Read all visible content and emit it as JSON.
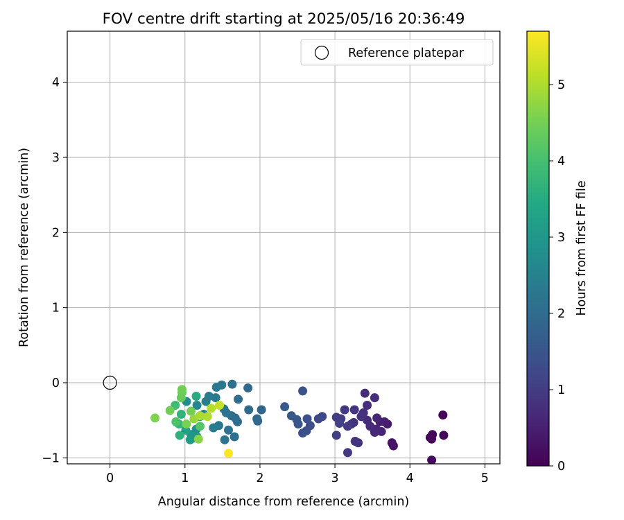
{
  "chart_data": {
    "type": "scatter",
    "title": "FOV centre drift starting at 2025/05/16 20:36:49",
    "xlabel": "Angular distance from reference (arcmin)",
    "ylabel": "Rotation from reference (arcmin)",
    "xlim": [
      -0.57,
      5.2
    ],
    "ylim": [
      -1.08,
      4.68
    ],
    "xticks": [
      0,
      1,
      2,
      3,
      4,
      5
    ],
    "yticks": [
      -1,
      0,
      1,
      2,
      3,
      4
    ],
    "grid": true,
    "legend": {
      "position": "top-right",
      "entries": [
        "Reference platepar"
      ]
    },
    "reference_point": {
      "x": 0,
      "y": 0
    },
    "colorbar": {
      "label": "Hours from first FF file",
      "colormap": "viridis",
      "range": [
        0,
        5.7
      ],
      "ticks": [
        0,
        1,
        2,
        3,
        4,
        5
      ]
    },
    "points": [
      {
        "x": 4.44,
        "y": -0.43,
        "t": 0.05
      },
      {
        "x": 4.45,
        "y": -0.7,
        "t": 0.05
      },
      {
        "x": 4.3,
        "y": -0.69,
        "t": 0.08
      },
      {
        "x": 4.27,
        "y": -0.73,
        "t": 0.1
      },
      {
        "x": 4.29,
        "y": -0.75,
        "t": 0.12
      },
      {
        "x": 4.29,
        "y": -1.03,
        "t": 0.15
      },
      {
        "x": 3.78,
        "y": -0.84,
        "t": 0.3
      },
      {
        "x": 3.76,
        "y": -0.8,
        "t": 0.32
      },
      {
        "x": 3.7,
        "y": -0.55,
        "t": 0.4
      },
      {
        "x": 3.66,
        "y": -0.52,
        "t": 0.45
      },
      {
        "x": 3.6,
        "y": -0.52,
        "t": 0.5
      },
      {
        "x": 3.62,
        "y": -0.65,
        "t": 0.55
      },
      {
        "x": 3.55,
        "y": -0.62,
        "t": 0.58
      },
      {
        "x": 3.56,
        "y": -0.47,
        "t": 0.6
      },
      {
        "x": 3.53,
        "y": -0.66,
        "t": 0.65
      },
      {
        "x": 3.47,
        "y": -0.58,
        "t": 0.68
      },
      {
        "x": 3.43,
        "y": -0.5,
        "t": 0.7
      },
      {
        "x": 3.43,
        "y": -0.3,
        "t": 0.72
      },
      {
        "x": 3.4,
        "y": -0.14,
        "t": 0.73
      },
      {
        "x": 3.53,
        "y": -0.2,
        "t": 0.75
      },
      {
        "x": 3.38,
        "y": -0.4,
        "t": 0.78
      },
      {
        "x": 3.35,
        "y": -0.45,
        "t": 0.8
      },
      {
        "x": 3.31,
        "y": -0.8,
        "t": 0.82
      },
      {
        "x": 3.27,
        "y": -0.78,
        "t": 0.84
      },
      {
        "x": 3.25,
        "y": -0.53,
        "t": 0.86
      },
      {
        "x": 3.22,
        "y": -0.55,
        "t": 0.88
      },
      {
        "x": 3.26,
        "y": -0.36,
        "t": 0.9
      },
      {
        "x": 3.17,
        "y": -0.93,
        "t": 0.92
      },
      {
        "x": 3.13,
        "y": -0.36,
        "t": 0.94
      },
      {
        "x": 3.17,
        "y": -0.58,
        "t": 0.96
      },
      {
        "x": 3.08,
        "y": -0.48,
        "t": 1.0
      },
      {
        "x": 3.02,
        "y": -0.46,
        "t": 1.02
      },
      {
        "x": 3.02,
        "y": -0.7,
        "t": 1.05
      },
      {
        "x": 3.06,
        "y": -0.54,
        "t": 1.08
      },
      {
        "x": 2.83,
        "y": -0.45,
        "t": 1.2
      },
      {
        "x": 2.78,
        "y": -0.48,
        "t": 1.25
      },
      {
        "x": 2.67,
        "y": -0.57,
        "t": 1.3
      },
      {
        "x": 2.62,
        "y": -0.64,
        "t": 1.35
      },
      {
        "x": 2.57,
        "y": -0.67,
        "t": 1.38
      },
      {
        "x": 2.63,
        "y": -0.48,
        "t": 1.42
      },
      {
        "x": 2.57,
        "y": -0.11,
        "t": 1.45
      },
      {
        "x": 2.51,
        "y": -0.55,
        "t": 1.5
      },
      {
        "x": 2.49,
        "y": -0.49,
        "t": 1.52
      },
      {
        "x": 2.42,
        "y": -0.44,
        "t": 1.55
      },
      {
        "x": 2.33,
        "y": -0.32,
        "t": 1.6
      },
      {
        "x": 2.02,
        "y": -0.36,
        "t": 1.85
      },
      {
        "x": 1.96,
        "y": -0.48,
        "t": 1.9
      },
      {
        "x": 1.97,
        "y": -0.51,
        "t": 1.92
      },
      {
        "x": 1.84,
        "y": -0.07,
        "t": 1.95
      },
      {
        "x": 1.85,
        "y": -0.36,
        "t": 1.98
      },
      {
        "x": 1.71,
        "y": -0.22,
        "t": 2.0
      },
      {
        "x": 1.7,
        "y": -0.52,
        "t": 2.02
      },
      {
        "x": 1.67,
        "y": -0.47,
        "t": 2.05
      },
      {
        "x": 1.62,
        "y": -0.44,
        "t": 2.08
      },
      {
        "x": 1.66,
        "y": -0.72,
        "t": 2.1
      },
      {
        "x": 1.63,
        "y": -0.02,
        "t": 2.12
      },
      {
        "x": 1.58,
        "y": -0.63,
        "t": 2.15
      },
      {
        "x": 1.55,
        "y": -0.4,
        "t": 2.18
      },
      {
        "x": 1.52,
        "y": -0.35,
        "t": 2.2
      },
      {
        "x": 1.53,
        "y": -0.76,
        "t": 2.22
      },
      {
        "x": 1.49,
        "y": -0.03,
        "t": 2.25
      },
      {
        "x": 1.45,
        "y": -0.57,
        "t": 2.28
      },
      {
        "x": 1.42,
        "y": -0.06,
        "t": 2.3
      },
      {
        "x": 1.41,
        "y": -0.2,
        "t": 2.33
      },
      {
        "x": 1.38,
        "y": -0.6,
        "t": 2.36
      },
      {
        "x": 1.32,
        "y": -0.18,
        "t": 2.4
      },
      {
        "x": 1.28,
        "y": -0.25,
        "t": 2.45
      },
      {
        "x": 1.25,
        "y": -0.42,
        "t": 2.5
      },
      {
        "x": 1.16,
        "y": -0.3,
        "t": 2.6
      },
      {
        "x": 1.02,
        "y": -0.25,
        "t": 2.75
      },
      {
        "x": 1.15,
        "y": -0.62,
        "t": 2.8
      },
      {
        "x": 1.16,
        "y": -0.72,
        "t": 2.85
      },
      {
        "x": 1.1,
        "y": -0.74,
        "t": 2.9
      },
      {
        "x": 1.08,
        "y": -0.69,
        "t": 3.0
      },
      {
        "x": 1.07,
        "y": -0.76,
        "t": 3.05
      },
      {
        "x": 1.01,
        "y": -0.63,
        "t": 3.2
      },
      {
        "x": 1.15,
        "y": -0.18,
        "t": 3.5
      },
      {
        "x": 1.2,
        "y": -0.45,
        "t": 3.55
      },
      {
        "x": 0.93,
        "y": -0.7,
        "t": 3.6
      },
      {
        "x": 0.95,
        "y": -0.42,
        "t": 3.7
      },
      {
        "x": 0.92,
        "y": -0.55,
        "t": 3.75
      },
      {
        "x": 0.87,
        "y": -0.3,
        "t": 3.9
      },
      {
        "x": 0.88,
        "y": -0.52,
        "t": 4.1
      },
      {
        "x": 1.2,
        "y": -0.58,
        "t": 4.15
      },
      {
        "x": 0.95,
        "y": -0.2,
        "t": 4.35
      },
      {
        "x": 0.96,
        "y": -0.13,
        "t": 4.4
      },
      {
        "x": 0.96,
        "y": -0.09,
        "t": 4.45
      },
      {
        "x": 0.8,
        "y": -0.37,
        "t": 4.45
      },
      {
        "x": 1.08,
        "y": -0.38,
        "t": 4.5
      },
      {
        "x": 1.02,
        "y": -0.55,
        "t": 4.55
      },
      {
        "x": 1.18,
        "y": -0.75,
        "t": 4.65
      },
      {
        "x": 0.6,
        "y": -0.47,
        "t": 4.6
      },
      {
        "x": 1.12,
        "y": -0.48,
        "t": 4.8
      },
      {
        "x": 1.2,
        "y": -0.44,
        "t": 4.95
      },
      {
        "x": 1.3,
        "y": -0.45,
        "t": 5.0
      },
      {
        "x": 1.35,
        "y": -0.34,
        "t": 5.05
      },
      {
        "x": 1.46,
        "y": -0.3,
        "t": 5.2
      },
      {
        "x": 1.58,
        "y": -0.94,
        "t": 5.7
      }
    ]
  }
}
